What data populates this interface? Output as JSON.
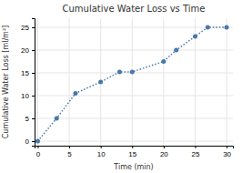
{
  "chart_data": {
    "type": "line",
    "title": "Cumulative Water Loss vs Time",
    "xlabel": "Time (min)",
    "ylabel": "Cumulative Water Loss [ml/m²]",
    "x": [
      0,
      3,
      6,
      10,
      13,
      15,
      20,
      22,
      25,
      27,
      30
    ],
    "values": [
      0,
      5,
      10.5,
      13,
      15.2,
      15.2,
      17.5,
      20,
      23,
      25,
      25
    ],
    "color": "#4878a8",
    "marker": "circle",
    "line_style": "dotted",
    "xlim": [
      -0.5,
      31
    ],
    "ylim": [
      -1,
      27
    ],
    "xticks": [
      0,
      5,
      10,
      15,
      20,
      25,
      30
    ],
    "yticks": [
      0,
      5,
      10,
      15,
      20,
      25
    ],
    "grid": true
  }
}
